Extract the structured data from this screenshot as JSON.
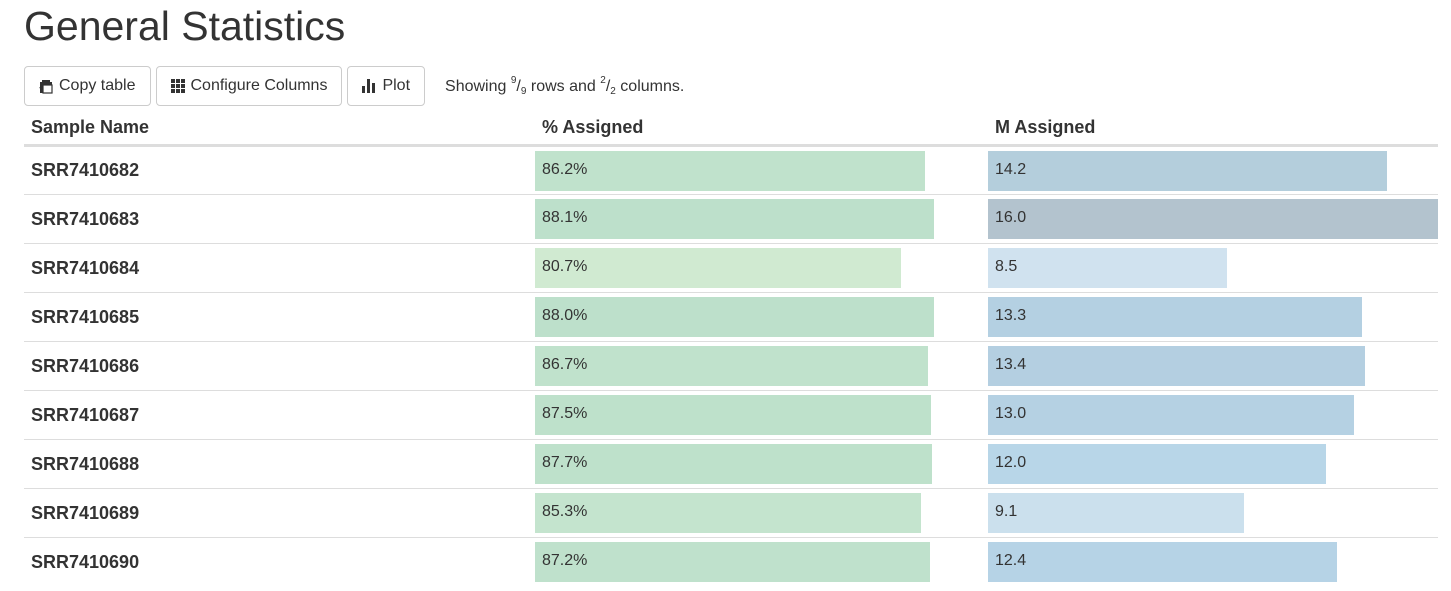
{
  "page": {
    "title": "General Statistics"
  },
  "toolbar": {
    "copy_label": "Copy table",
    "configure_label": "Configure Columns",
    "plot_label": "Plot",
    "showing_prefix": "Showing",
    "rows_shown": "9",
    "rows_total": "9",
    "rows_word": "rows and",
    "cols_shown": "2",
    "cols_total": "2",
    "cols_word": "columns."
  },
  "table": {
    "headers": [
      "Sample Name",
      "% Assigned",
      "M Assigned"
    ],
    "assigned_max": 100,
    "massigned_max": 16.0,
    "rows": [
      {
        "name": "SRR7410682",
        "pct": 86.2,
        "pct_label": "86.2%",
        "m": 14.2,
        "m_label": "14.2",
        "pct_color": "#c0e2cc",
        "m_color": "#b4cedc"
      },
      {
        "name": "SRR7410683",
        "pct": 88.1,
        "pct_label": "88.1%",
        "m": 16.0,
        "m_label": "16.0",
        "pct_color": "#bde0cb",
        "m_color": "#b3c3ce"
      },
      {
        "name": "SRR7410684",
        "pct": 80.7,
        "pct_label": "80.7%",
        "m": 8.5,
        "m_label": "8.5",
        "pct_color": "#d0ead1",
        "m_color": "#d0e2ef"
      },
      {
        "name": "SRR7410685",
        "pct": 88.0,
        "pct_label": "88.0%",
        "m": 13.3,
        "m_label": "13.3",
        "pct_color": "#bde0cb",
        "m_color": "#b4d0e2"
      },
      {
        "name": "SRR7410686",
        "pct": 86.7,
        "pct_label": "86.7%",
        "m": 13.4,
        "m_label": "13.4",
        "pct_color": "#c0e2cc",
        "m_color": "#b4cfe1"
      },
      {
        "name": "SRR7410687",
        "pct": 87.5,
        "pct_label": "87.5%",
        "m": 13.0,
        "m_label": "13.0",
        "pct_color": "#bee1cb",
        "m_color": "#b5d1e3"
      },
      {
        "name": "SRR7410688",
        "pct": 87.7,
        "pct_label": "87.7%",
        "m": 12.0,
        "m_label": "12.0",
        "pct_color": "#bee1cb",
        "m_color": "#b8d6e8"
      },
      {
        "name": "SRR7410689",
        "pct": 85.3,
        "pct_label": "85.3%",
        "m": 9.1,
        "m_label": "9.1",
        "pct_color": "#c4e4ce",
        "m_color": "#cbe0ed"
      },
      {
        "name": "SRR7410690",
        "pct": 87.2,
        "pct_label": "87.2%",
        "m": 12.4,
        "m_label": "12.4",
        "pct_color": "#bfe1cc",
        "m_color": "#b6d3e6"
      }
    ]
  }
}
